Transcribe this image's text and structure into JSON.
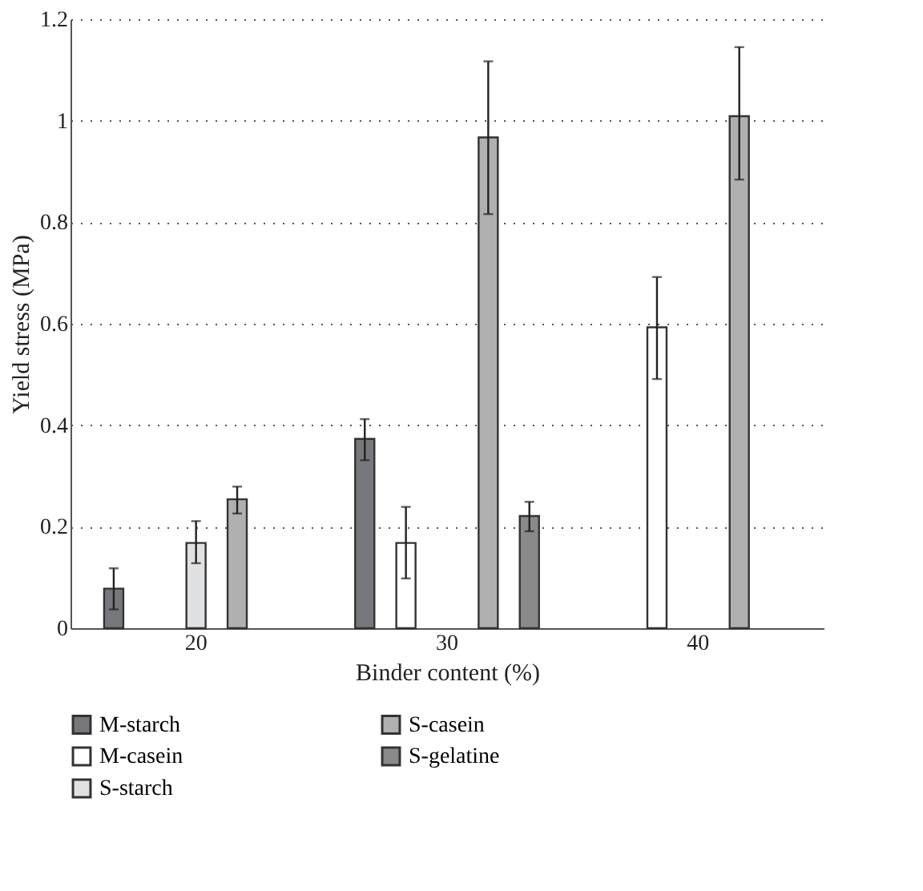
{
  "chart_data": {
    "type": "bar",
    "xlabel": "Binder content (%)",
    "ylabel": "Yield stress (MPa)",
    "categories": [
      "20",
      "30",
      "40"
    ],
    "series": [
      {
        "name": "M-starch",
        "color": "#77787b",
        "values": [
          0.078,
          0.373,
          null
        ],
        "errors": [
          [
            0.037,
            0.118
          ],
          [
            0.331,
            0.412
          ],
          null
        ]
      },
      {
        "name": "M-casein",
        "color": "#ffffff",
        "values": [
          null,
          0.168,
          0.593
        ],
        "errors": [
          null,
          [
            0.098,
            0.239
          ],
          [
            0.491,
            0.692
          ]
        ]
      },
      {
        "name": "S-starch",
        "color": "#e0e1e2",
        "values": [
          0.168,
          null,
          null
        ],
        "errors": [
          [
            0.128,
            0.211
          ],
          null,
          null
        ]
      },
      {
        "name": "S-casein",
        "color": "#b0b0b0",
        "values": [
          0.254,
          0.967,
          1.009
        ],
        "errors": [
          [
            0.226,
            0.279
          ],
          [
            0.816,
            1.117
          ],
          [
            0.884,
            1.145
          ]
        ]
      },
      {
        "name": "S-gelatine",
        "color": "#8a8a8a",
        "values": [
          null,
          0.221,
          null
        ],
        "errors": [
          null,
          [
            0.191,
            0.249
          ],
          null
        ]
      }
    ],
    "ylim": [
      0,
      1.2
    ],
    "yticks": [
      0,
      0.2,
      0.4,
      0.6,
      0.8,
      1,
      1.2
    ],
    "grid": "y",
    "legend": "bottom"
  }
}
